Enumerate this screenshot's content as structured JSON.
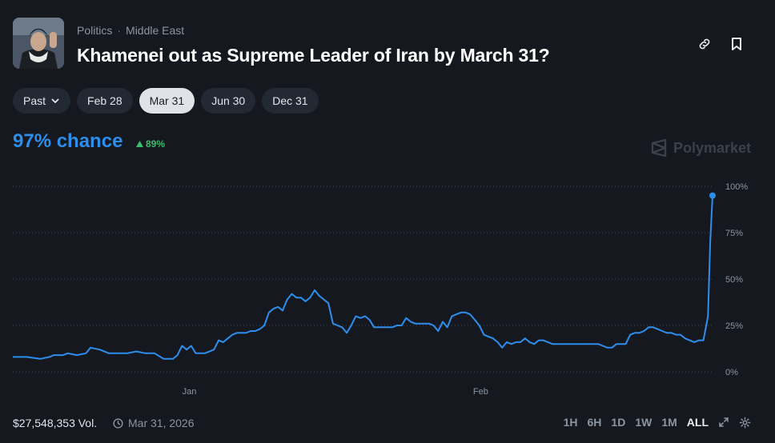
{
  "header": {
    "category": "Politics",
    "subcategory": "Middle East",
    "title": "Khamenei out as Supreme Leader of Iran by March 31?"
  },
  "pills": [
    {
      "label": "Past",
      "has_chevron": true,
      "active": false
    },
    {
      "label": "Feb 28",
      "active": false
    },
    {
      "label": "Mar 31",
      "active": true
    },
    {
      "label": "Jun 30",
      "active": false
    },
    {
      "label": "Dec 31",
      "active": false
    }
  ],
  "summary": {
    "chance": "97% chance",
    "change": "89%"
  },
  "brand": {
    "name": "Polymarket"
  },
  "footer": {
    "volume": "$27,548,353 Vol.",
    "end_date": "Mar 31, 2026",
    "ranges": [
      "1H",
      "6H",
      "1D",
      "1W",
      "1M",
      "ALL"
    ],
    "active_range": "ALL"
  },
  "colors": {
    "accent": "#2e8eed",
    "positive": "#3dbb6e",
    "background": "#15191f"
  },
  "chart_data": {
    "type": "line",
    "ylim": [
      0,
      100
    ],
    "yticks": [
      "100%",
      "75%",
      "50%",
      "25%",
      "0%"
    ],
    "ytick_values": [
      100,
      75,
      50,
      25,
      0
    ],
    "xtick_labels": [
      "Jan",
      "Feb"
    ],
    "xtick_positions": [
      38.6,
      102.3
    ],
    "x_range": [
      0,
      153
    ],
    "grid": true,
    "series": [
      {
        "values": [
          [
            0,
            8
          ],
          [
            3,
            8
          ],
          [
            6,
            7
          ],
          [
            8,
            8
          ],
          [
            9,
            9
          ],
          [
            11,
            9
          ],
          [
            12,
            10
          ],
          [
            14,
            9
          ],
          [
            16,
            10
          ],
          [
            17,
            13
          ],
          [
            19,
            12
          ],
          [
            21,
            10
          ],
          [
            23,
            10
          ],
          [
            25,
            10
          ],
          [
            27,
            11
          ],
          [
            29,
            10
          ],
          [
            31,
            10
          ],
          [
            33,
            7
          ],
          [
            35,
            7
          ],
          [
            36,
            9
          ],
          [
            37,
            14
          ],
          [
            38,
            12
          ],
          [
            39,
            14
          ],
          [
            40,
            10
          ],
          [
            42,
            10
          ],
          [
            44,
            12
          ],
          [
            45,
            17
          ],
          [
            46,
            16
          ],
          [
            47,
            18
          ],
          [
            48,
            20
          ],
          [
            49,
            21
          ],
          [
            50,
            21
          ],
          [
            51,
            21
          ],
          [
            52,
            22
          ],
          [
            53,
            22
          ],
          [
            54,
            23
          ],
          [
            55,
            25
          ],
          [
            56,
            32
          ],
          [
            57,
            34
          ],
          [
            58,
            35
          ],
          [
            59,
            33
          ],
          [
            60,
            39
          ],
          [
            61,
            42
          ],
          [
            62,
            40
          ],
          [
            63,
            40
          ],
          [
            64,
            38
          ],
          [
            65,
            40
          ],
          [
            66,
            44
          ],
          [
            67,
            41
          ],
          [
            68,
            39
          ],
          [
            69,
            37
          ],
          [
            70,
            26
          ],
          [
            71,
            25
          ],
          [
            72,
            24
          ],
          [
            73,
            21
          ],
          [
            74,
            25
          ],
          [
            75,
            30
          ],
          [
            76,
            29
          ],
          [
            77,
            30
          ],
          [
            78,
            28
          ],
          [
            79,
            24
          ],
          [
            80,
            24
          ],
          [
            81,
            24
          ],
          [
            82,
            24
          ],
          [
            83,
            24
          ],
          [
            84,
            25
          ],
          [
            85,
            25
          ],
          [
            86,
            29
          ],
          [
            87,
            27
          ],
          [
            88,
            26
          ],
          [
            89,
            26
          ],
          [
            90,
            26
          ],
          [
            91,
            26
          ],
          [
            92,
            25
          ],
          [
            93,
            22
          ],
          [
            94,
            27
          ],
          [
            95,
            24
          ],
          [
            96,
            30
          ],
          [
            97,
            31
          ],
          [
            98,
            32
          ],
          [
            99,
            32
          ],
          [
            100,
            31
          ],
          [
            101,
            28
          ],
          [
            102,
            25
          ],
          [
            103,
            20
          ],
          [
            104,
            19
          ],
          [
            105,
            18
          ],
          [
            106,
            16
          ],
          [
            107,
            13
          ],
          [
            108,
            16
          ],
          [
            109,
            15
          ],
          [
            110,
            16
          ],
          [
            111,
            16
          ],
          [
            112,
            18
          ],
          [
            113,
            16
          ],
          [
            114,
            15
          ],
          [
            115,
            17
          ],
          [
            116,
            17
          ],
          [
            117,
            16
          ],
          [
            118,
            15
          ],
          [
            119,
            15
          ],
          [
            120,
            15
          ],
          [
            122,
            15
          ],
          [
            124,
            15
          ],
          [
            126,
            15
          ],
          [
            128,
            15
          ],
          [
            129,
            14
          ],
          [
            130,
            13
          ],
          [
            131,
            13
          ],
          [
            132,
            15
          ],
          [
            133,
            15
          ],
          [
            134,
            15
          ],
          [
            135,
            20
          ],
          [
            136,
            21
          ],
          [
            137,
            21
          ],
          [
            138,
            22
          ],
          [
            139,
            24
          ],
          [
            140,
            24
          ],
          [
            141,
            23
          ],
          [
            142,
            22
          ],
          [
            143,
            21
          ],
          [
            144,
            21
          ],
          [
            145,
            20
          ],
          [
            146,
            20
          ],
          [
            147,
            18
          ],
          [
            148,
            17
          ],
          [
            149,
            16
          ],
          [
            150,
            17
          ],
          [
            151,
            17
          ],
          [
            152,
            30
          ],
          [
            152.5,
            70
          ],
          [
            153,
            95
          ]
        ],
        "color": "#2e8eed"
      }
    ]
  }
}
